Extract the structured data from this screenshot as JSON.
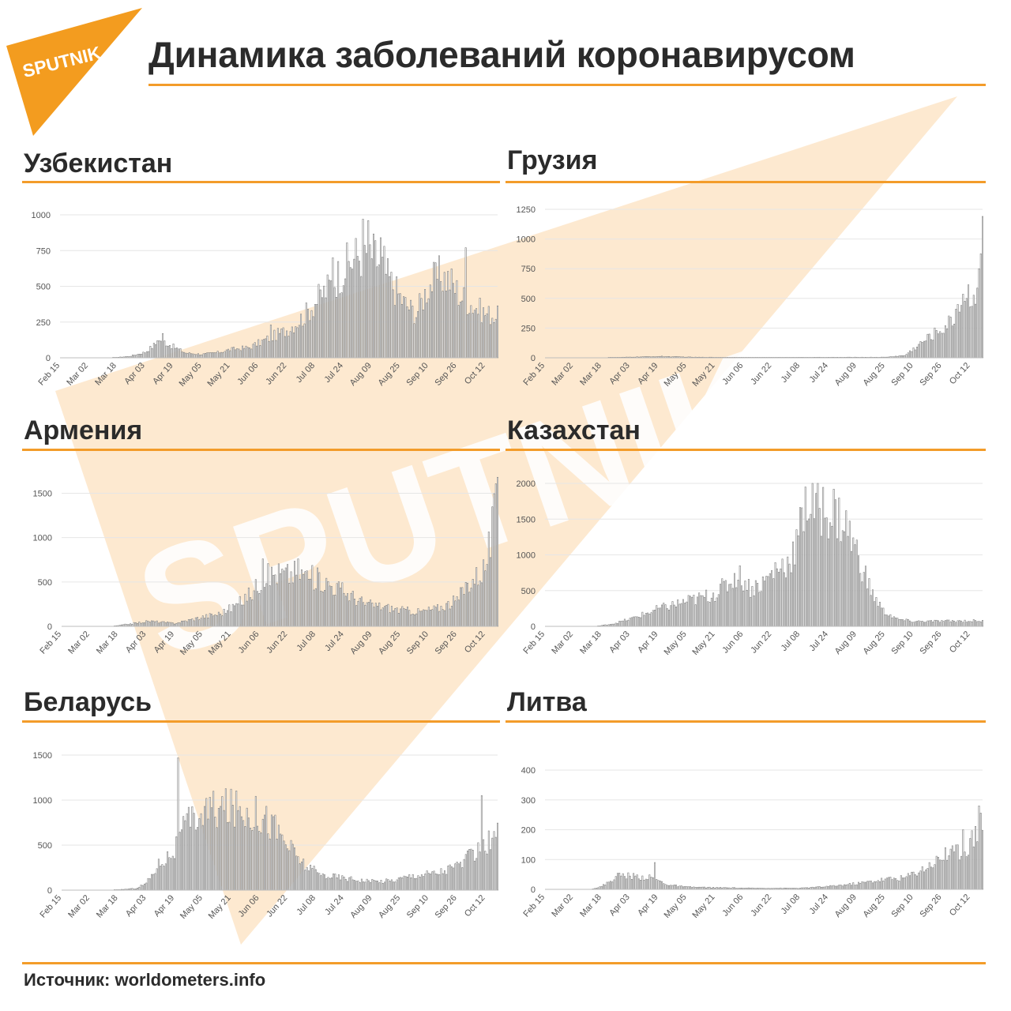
{
  "brand": {
    "logo_text": "SPUTNIK",
    "watermark_text": "SPUTNIK",
    "accent": "#f39c2a"
  },
  "title": "Динамика заболеваний коронавирусом",
  "source": "Источник: worldometers.info",
  "axis_dates": [
    "Feb 15",
    "Mar 02",
    "Mar 18",
    "Apr 03",
    "Apr 19",
    "May 05",
    "May 21",
    "Jun 06",
    "Jun 22",
    "Jul 08",
    "Jul 24",
    "Aug 09",
    "Aug 25",
    "Sep 10",
    "Sep 26",
    "Oct 12"
  ],
  "chart_data": [
    {
      "id": "uz",
      "country": "Узбекистан",
      "type": "bar",
      "ylim": [
        0,
        1000
      ],
      "yticks": [
        0,
        250,
        500,
        750,
        1000
      ],
      "x_range": [
        "Feb 15",
        "Oct 19"
      ],
      "grid": true,
      "anchors": [
        [
          "Feb 15",
          0
        ],
        [
          "Mar 15",
          0
        ],
        [
          "Mar 25",
          10
        ],
        [
          "Apr 03",
          40
        ],
        [
          "Apr 12",
          130
        ],
        [
          "Apr 19",
          80
        ],
        [
          "Apr 26",
          35
        ],
        [
          "May 05",
          25
        ],
        [
          "May 15",
          40
        ],
        [
          "May 21",
          60
        ],
        [
          "Jun 01",
          75
        ],
        [
          "Jun 10",
          130
        ],
        [
          "Jun 22",
          200
        ],
        [
          "Jul 01",
          290
        ],
        [
          "Jul 08",
          400
        ],
        [
          "Jul 15",
          500
        ],
        [
          "Jul 24",
          640
        ],
        [
          "Aug 01",
          740
        ],
        [
          "Aug 07",
          780
        ],
        [
          "Aug 13",
          690
        ],
        [
          "Aug 20",
          540
        ],
        [
          "Aug 27",
          400
        ],
        [
          "Sep 03",
          320
        ],
        [
          "Sep 10",
          520
        ],
        [
          "Sep 17",
          600
        ],
        [
          "Sep 22",
          560
        ],
        [
          "Sep 28",
          450
        ],
        [
          "Oct 05",
          380
        ],
        [
          "Oct 12",
          320
        ],
        [
          "Oct 19",
          300
        ]
      ],
      "spikes": [
        [
          "Apr 10",
          120
        ],
        [
          "Apr 13",
          170
        ],
        [
          "Jun 13",
          230
        ],
        [
          "Jul 18",
          700
        ],
        [
          "Aug 04",
          970
        ],
        [
          "Aug 07",
          960
        ],
        [
          "Aug 14",
          840
        ],
        [
          "Aug 16",
          780
        ],
        [
          "Oct 01",
          770
        ]
      ]
    },
    {
      "id": "ge",
      "country": "Грузия",
      "type": "bar",
      "ylim": [
        0,
        1250
      ],
      "yticks": [
        0,
        250,
        500,
        750,
        1000,
        1250
      ],
      "x_range": [
        "Feb 15",
        "Oct 19"
      ],
      "grid": true,
      "anchors": [
        [
          "Feb 15",
          0
        ],
        [
          "Mar 20",
          0
        ],
        [
          "Apr 03",
          6
        ],
        [
          "Apr 20",
          12
        ],
        [
          "May 10",
          5
        ],
        [
          "Jun 10",
          3
        ],
        [
          "Aug 25",
          5
        ],
        [
          "Sep 05",
          20
        ],
        [
          "Sep 12",
          100
        ],
        [
          "Sep 19",
          180
        ],
        [
          "Sep 26",
          250
        ],
        [
          "Oct 02",
          320
        ],
        [
          "Oct 06",
          500
        ],
        [
          "Oct 10",
          560
        ],
        [
          "Oct 14",
          520
        ],
        [
          "Oct 16",
          700
        ],
        [
          "Oct 18",
          950
        ],
        [
          "Oct 19",
          1100
        ]
      ],
      "spikes": [
        [
          "Oct 19",
          1190
        ]
      ]
    },
    {
      "id": "am",
      "country": "Армения",
      "type": "bar",
      "ylim": [
        0,
        1700
      ],
      "yticks": [
        0,
        500,
        1000,
        1500
      ],
      "x_range": [
        "Feb 15",
        "Oct 19"
      ],
      "grid": true,
      "anchors": [
        [
          "Feb 15",
          0
        ],
        [
          "Mar 15",
          0
        ],
        [
          "Mar 25",
          30
        ],
        [
          "Apr 05",
          60
        ],
        [
          "Apr 19",
          35
        ],
        [
          "May 05",
          110
        ],
        [
          "May 15",
          150
        ],
        [
          "May 25",
          260
        ],
        [
          "Jun 02",
          400
        ],
        [
          "Jun 08",
          560
        ],
        [
          "Jun 15",
          620
        ],
        [
          "Jun 22",
          600
        ],
        [
          "Jun 28",
          640
        ],
        [
          "Jul 05",
          570
        ],
        [
          "Jul 12",
          530
        ],
        [
          "Jul 20",
          450
        ],
        [
          "Jul 28",
          360
        ],
        [
          "Aug 05",
          260
        ],
        [
          "Aug 15",
          230
        ],
        [
          "Aug 25",
          190
        ],
        [
          "Sep 05",
          170
        ],
        [
          "Sep 15",
          210
        ],
        [
          "Sep 26",
          300
        ],
        [
          "Oct 02",
          500
        ],
        [
          "Oct 08",
          600
        ],
        [
          "Oct 12",
          700
        ],
        [
          "Oct 15",
          1000
        ],
        [
          "Oct 19",
          1500
        ]
      ],
      "spikes": [
        [
          "Jun 08",
          760
        ],
        [
          "Jun 28",
          760
        ],
        [
          "Oct 19",
          1680
        ]
      ]
    },
    {
      "id": "kz",
      "country": "Казахстан",
      "type": "bar",
      "ylim": [
        0,
        2000
      ],
      "yticks": [
        0,
        500,
        1000,
        1500,
        2000
      ],
      "x_range": [
        "Feb 15",
        "Oct 19"
      ],
      "grid": true,
      "anchors": [
        [
          "Feb 15",
          0
        ],
        [
          "Mar 15",
          0
        ],
        [
          "Mar 25",
          40
        ],
        [
          "Apr 05",
          120
        ],
        [
          "Apr 19",
          250
        ],
        [
          "May 05",
          360
        ],
        [
          "May 15",
          420
        ],
        [
          "May 21",
          480
        ],
        [
          "May 28",
          600
        ],
        [
          "Jun 03",
          750
        ],
        [
          "Jun 10",
          550
        ],
        [
          "Jun 17",
          620
        ],
        [
          "Jun 24",
          820
        ],
        [
          "Jul 01",
          920
        ],
        [
          "Jul 05",
          1100
        ],
        [
          "Jul 10",
          1600
        ],
        [
          "Jul 15",
          1750
        ],
        [
          "Jul 20",
          1700
        ],
        [
          "Jul 27",
          1650
        ],
        [
          "Aug 03",
          1450
        ],
        [
          "Aug 10",
          1000
        ],
        [
          "Aug 17",
          500
        ],
        [
          "Aug 24",
          220
        ],
        [
          "Sep 01",
          100
        ],
        [
          "Sep 10",
          70
        ],
        [
          "Oct 19",
          80
        ]
      ],
      "spikes": [
        [
          "Jul 11",
          1950
        ],
        [
          "Jul 17",
          1860
        ]
      ]
    },
    {
      "id": "by",
      "country": "Беларусь",
      "type": "bar",
      "ylim": [
        0,
        1500
      ],
      "yticks": [
        0,
        500,
        1000,
        1500
      ],
      "x_range": [
        "Feb 15",
        "Oct 19"
      ],
      "grid": true,
      "anchors": [
        [
          "Feb 15",
          0
        ],
        [
          "Mar 15",
          0
        ],
        [
          "Mar 28",
          20
        ],
        [
          "Apr 03",
          80
        ],
        [
          "Apr 10",
          300
        ],
        [
          "Apr 19",
          450
        ],
        [
          "Apr 25",
          720
        ],
        [
          "May 02",
          850
        ],
        [
          "May 10",
          920
        ],
        [
          "May 20",
          940
        ],
        [
          "Jun 01",
          900
        ],
        [
          "Jun 08",
          850
        ],
        [
          "Jun 15",
          720
        ],
        [
          "Jun 22",
          520
        ],
        [
          "Jul 01",
          300
        ],
        [
          "Jul 10",
          180
        ],
        [
          "Jul 24",
          140
        ],
        [
          "Aug 09",
          100
        ],
        [
          "Aug 20",
          110
        ],
        [
          "Sep 01",
          170
        ],
        [
          "Sep 15",
          200
        ],
        [
          "Sep 26",
          280
        ],
        [
          "Oct 05",
          400
        ],
        [
          "Oct 12",
          500
        ],
        [
          "Oct 19",
          640
        ]
      ],
      "spikes": [
        [
          "Apr 21",
          1470
        ],
        [
          "Oct 10",
          1050
        ]
      ]
    },
    {
      "id": "lt",
      "country": "Литва",
      "type": "bar",
      "ylim": [
        0,
        400
      ],
      "yticks": [
        0,
        100,
        200,
        300,
        400
      ],
      "x_range": [
        "Feb 15",
        "Oct 19"
      ],
      "grid": true,
      "anchors": [
        [
          "Feb 15",
          0
        ],
        [
          "Mar 12",
          0
        ],
        [
          "Mar 18",
          10
        ],
        [
          "Mar 28",
          50
        ],
        [
          "Apr 05",
          45
        ],
        [
          "Apr 15",
          40
        ],
        [
          "Apr 25",
          15
        ],
        [
          "May 05",
          8
        ],
        [
          "May 21",
          6
        ],
        [
          "Jun 10",
          4
        ],
        [
          "Jul 08",
          4
        ],
        [
          "Jul 24",
          10
        ],
        [
          "Aug 09",
          20
        ],
        [
          "Aug 25",
          35
        ],
        [
          "Sep 05",
          40
        ],
        [
          "Sep 15",
          70
        ],
        [
          "Sep 26",
          110
        ],
        [
          "Oct 05",
          130
        ],
        [
          "Oct 12",
          160
        ],
        [
          "Oct 19",
          240
        ]
      ],
      "spikes": [
        [
          "Apr 17",
          90
        ],
        [
          "Sep 28",
          140
        ],
        [
          "Oct 08",
          200
        ],
        [
          "Oct 17",
          280
        ]
      ]
    }
  ]
}
